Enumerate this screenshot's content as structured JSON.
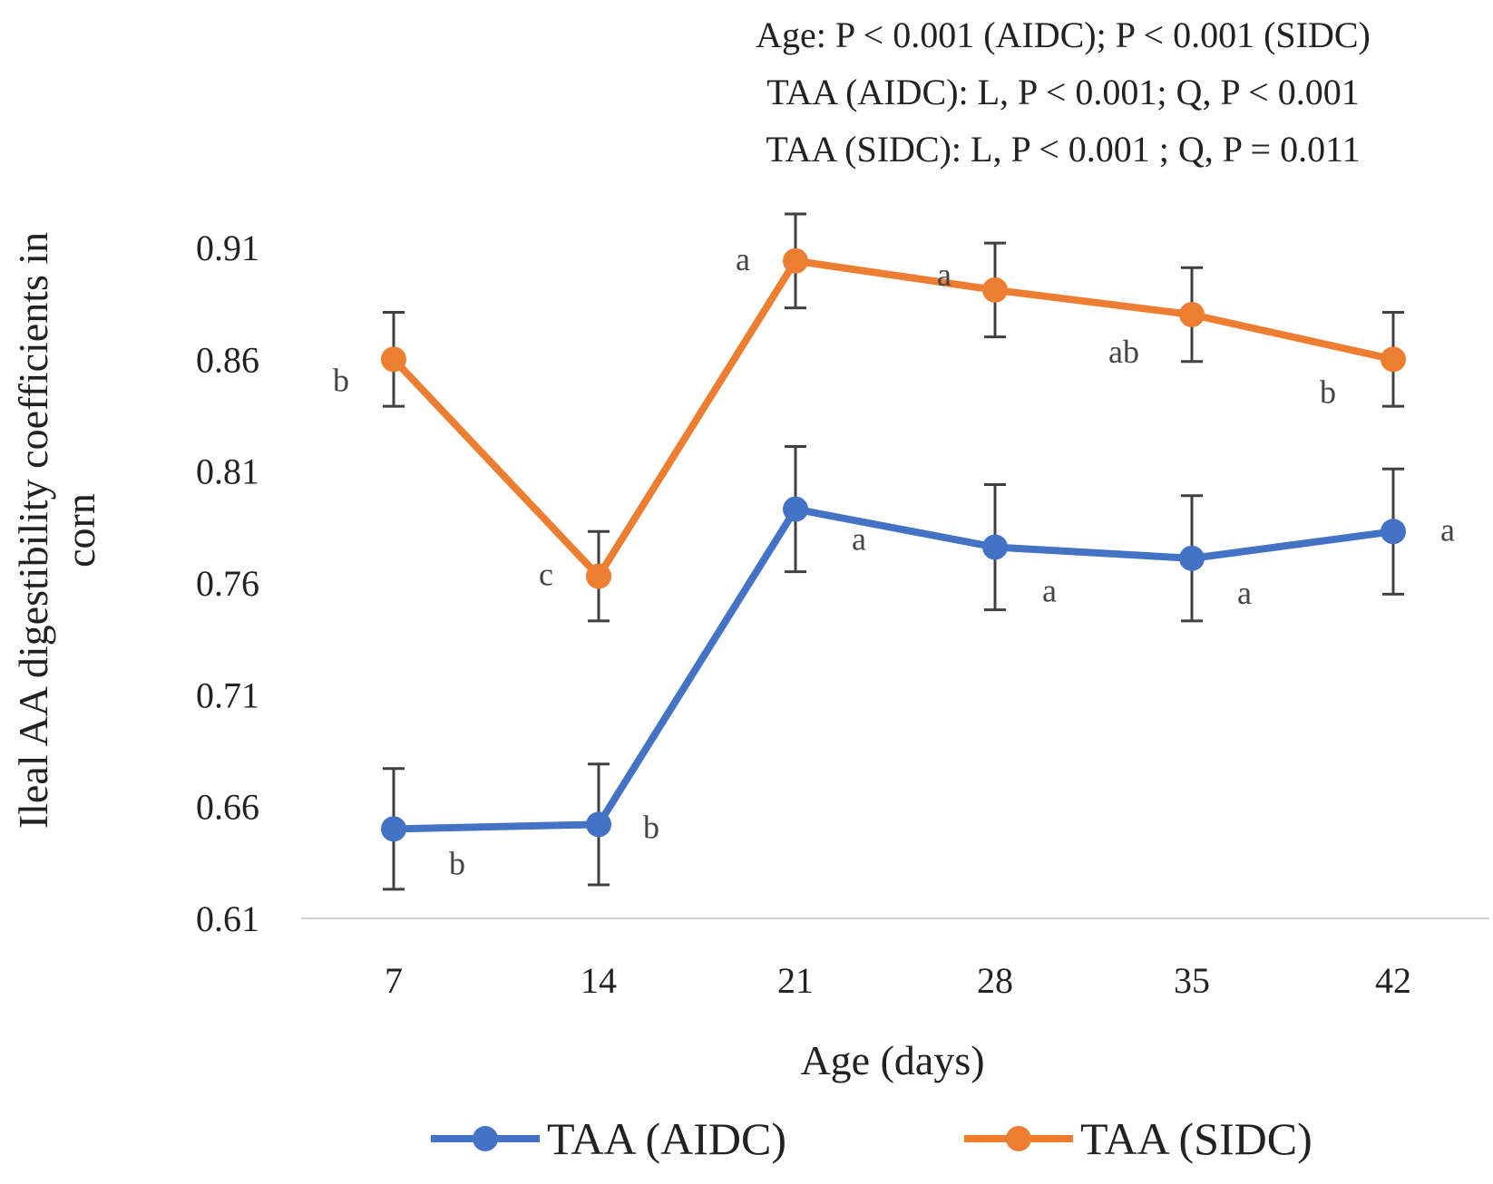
{
  "chart_data": {
    "type": "line",
    "stats_lines": [
      "Age: P < 0.001 (AIDC); P < 0.001 (SIDC)",
      "TAA (AIDC): L,  P < 0.001; Q,  P < 0.001",
      "TAA (SIDC): L,  P < 0.001 ; Q,  P = 0.011"
    ],
    "ylabel_lines": [
      "Ileal AA digestibility coefficients in",
      "corn"
    ],
    "xlabel": "Age (days)",
    "categories": [
      "7",
      "14",
      "21",
      "28",
      "35",
      "42"
    ],
    "yticks": [
      "0.61",
      "0.66",
      "0.71",
      "0.76",
      "0.81",
      "0.86",
      "0.91"
    ],
    "ylim": [
      0.61,
      0.91
    ],
    "grid": false,
    "legend_position": "bottom",
    "series": [
      {
        "name": "TAA (AIDC)",
        "color": "#4472C4",
        "values": [
          0.65,
          0.652,
          0.793,
          0.776,
          0.771,
          0.783
        ],
        "errors": [
          0.027,
          0.027,
          0.028,
          0.028,
          0.028,
          0.028
        ],
        "letters": [
          "b",
          "b",
          "a",
          "a",
          "a",
          "a"
        ]
      },
      {
        "name": "TAA (SIDC)",
        "color": "#ED7D31",
        "values": [
          0.86,
          0.763,
          0.904,
          0.891,
          0.88,
          0.86
        ],
        "errors": [
          0.021,
          0.02,
          0.021,
          0.021,
          0.021,
          0.021
        ],
        "letters": [
          "b",
          "c",
          "a",
          "a",
          "ab",
          "b"
        ]
      }
    ]
  }
}
